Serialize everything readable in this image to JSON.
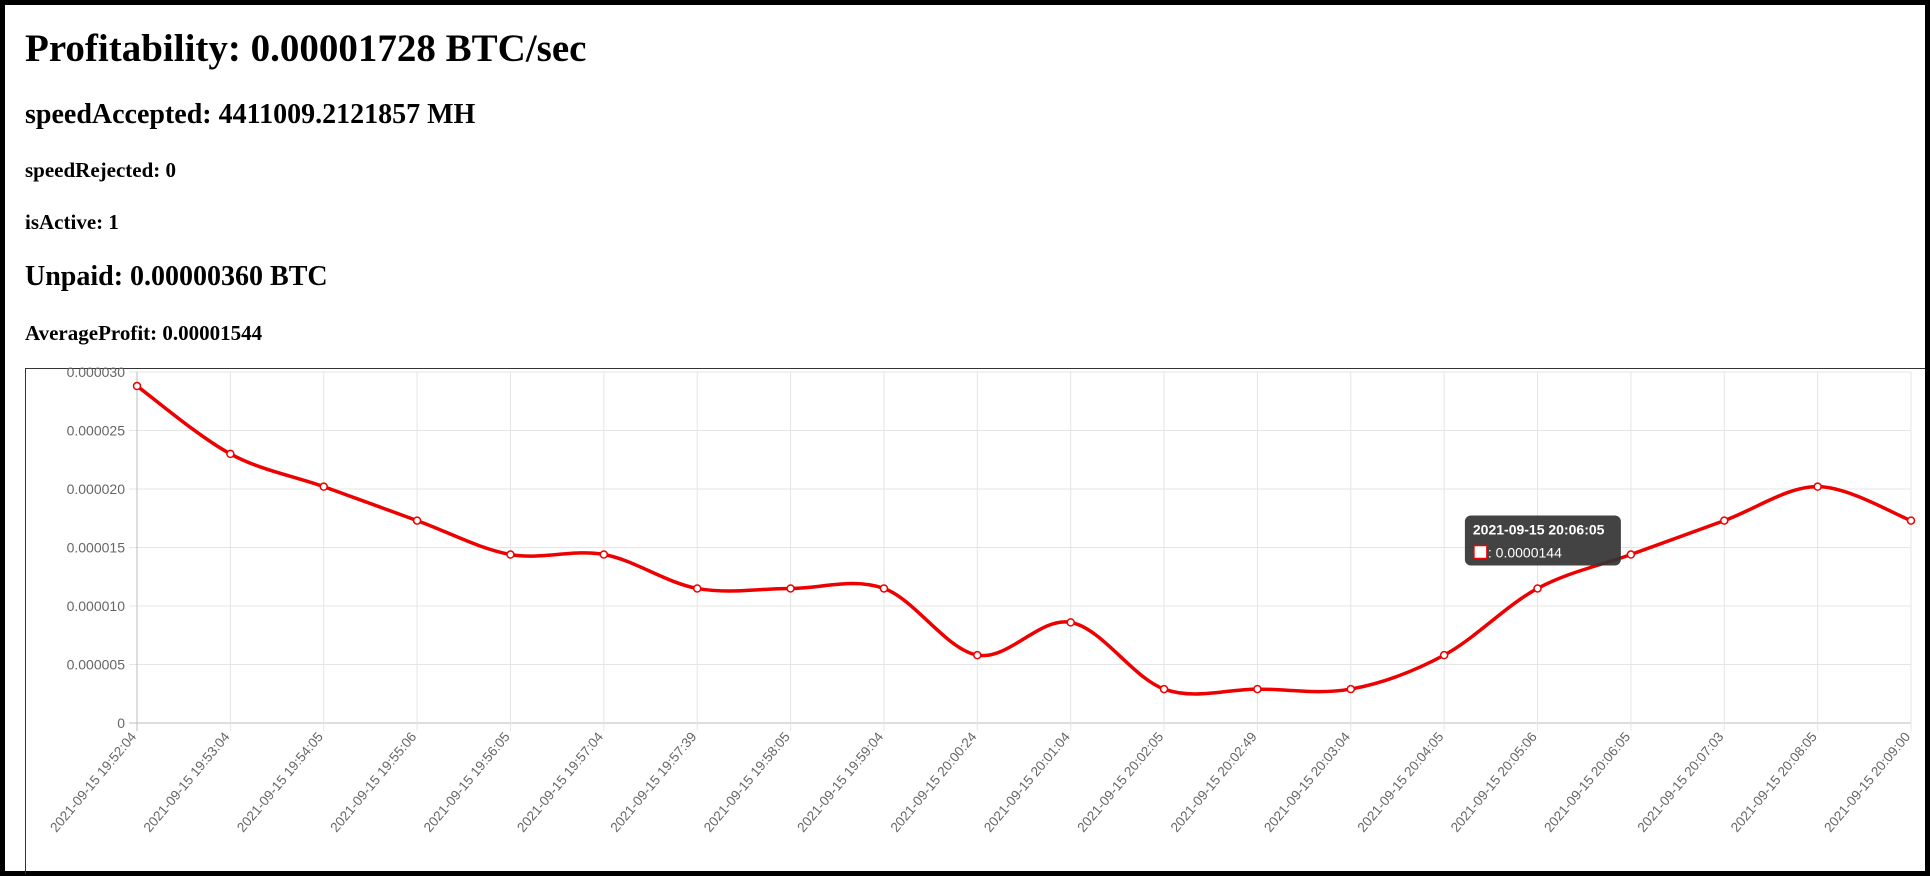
{
  "stats": {
    "profitability": "Profitability: 0.00001728 BTC/sec",
    "speed_accepted": "speedAccepted: 4411009.2121857 MH",
    "speed_rejected": "speedRejected: 0",
    "is_active": "isActive: 1",
    "unpaid": "Unpaid: 0.00000360 BTC",
    "average_profit": "AverageProfit: 0.00001544"
  },
  "colors": {
    "line": "#ee0000",
    "grid": "#e5e5e5",
    "tooltip_bg": "#333333"
  },
  "chart_data": {
    "type": "line",
    "title": "",
    "xlabel": "",
    "ylabel": "",
    "ylim": [
      0,
      3e-05
    ],
    "y_ticks": [
      "0",
      "0.000005",
      "0.000010",
      "0.000015",
      "0.000020",
      "0.000025",
      "0.000030"
    ],
    "grid": true,
    "legend": "none",
    "categories": [
      "2021-09-15 19:52:04",
      "2021-09-15 19:53:04",
      "2021-09-15 19:54:05",
      "2021-09-15 19:55:06",
      "2021-09-15 19:56:05",
      "2021-09-15 19:57:04",
      "2021-09-15 19:57:39",
      "2021-09-15 19:58:05",
      "2021-09-15 19:59:04",
      "2021-09-15 20:00:24",
      "2021-09-15 20:01:04",
      "2021-09-15 20:02:05",
      "2021-09-15 20:02:49",
      "2021-09-15 20:03:04",
      "2021-09-15 20:04:05",
      "2021-09-15 20:05:06",
      "2021-09-15 20:06:05",
      "2021-09-15 20:07:03",
      "2021-09-15 20:08:05",
      "2021-09-15 20:09:00"
    ],
    "series": [
      {
        "values": [
          2.88e-05,
          2.3e-05,
          2.02e-05,
          1.73e-05,
          1.44e-05,
          1.44e-05,
          1.15e-05,
          1.15e-05,
          1.15e-05,
          5.8e-06,
          8.6e-06,
          2.9e-06,
          2.9e-06,
          2.9e-06,
          5.8e-06,
          1.15e-05,
          1.44e-05,
          1.73e-05,
          2.02e-05,
          1.73e-05
        ]
      }
    ],
    "tooltip": {
      "title": "2021-09-15 20:06:05",
      "value": ": 0.0000144"
    }
  }
}
